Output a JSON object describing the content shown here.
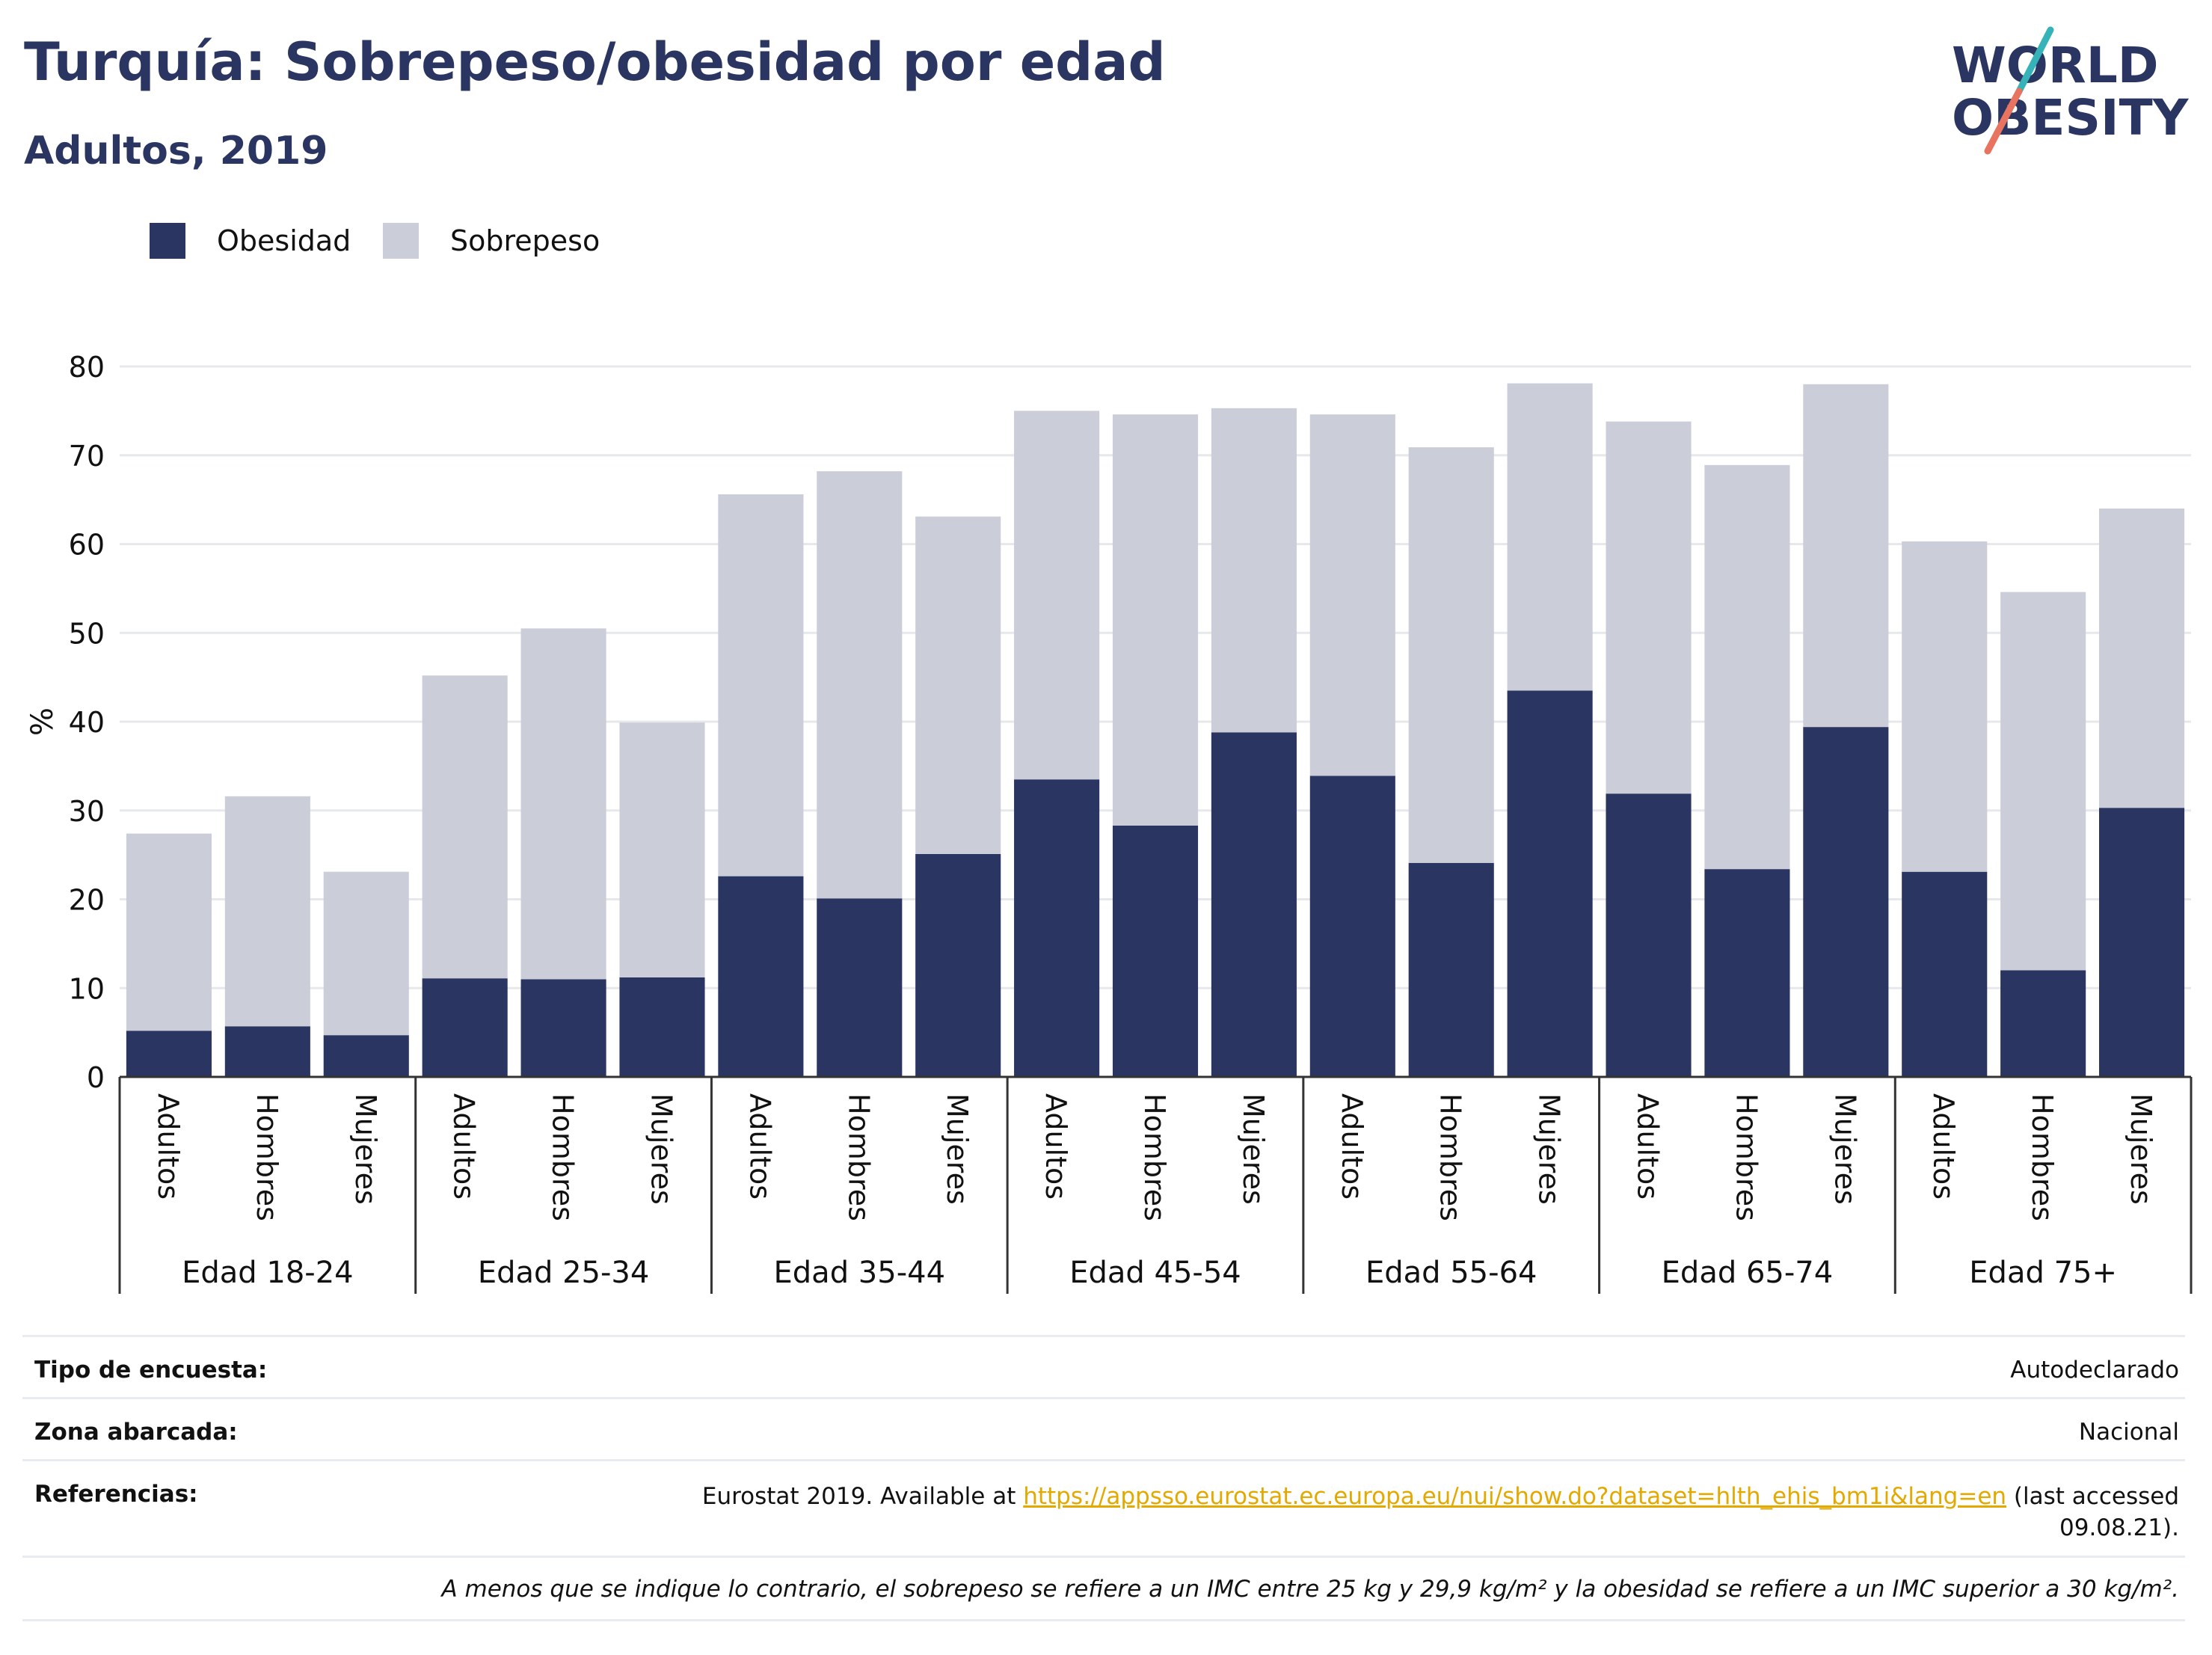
{
  "title": "Turquía: Sobrepeso/obesidad por edad",
  "subtitle": "Adultos, 2019",
  "logo": {
    "line1": "WORLD",
    "line2": "OBESITY"
  },
  "colors": {
    "obesity": "#2a3561",
    "overweight": "#cbcdd8",
    "logo_teal": "#36b3b9",
    "logo_coral": "#e8735f",
    "link": "#e4a900"
  },
  "legend": [
    {
      "label": "Obesidad",
      "color": "#2a3561"
    },
    {
      "label": "Sobrepeso",
      "color": "#cbcdd8"
    }
  ],
  "chart_data": {
    "type": "bar",
    "stacked": true,
    "ylabel": "%",
    "xlabel": "",
    "ylim": [
      0,
      80
    ],
    "yticks": [
      0,
      10,
      20,
      30,
      40,
      50,
      60,
      70,
      80
    ],
    "grid": true,
    "legend_position": "top-left",
    "groups": [
      "Edad 18-24",
      "Edad 25-34",
      "Edad 35-44",
      "Edad 45-54",
      "Edad 55-64",
      "Edad 65-74",
      "Edad 75+"
    ],
    "subcategories": [
      "Adultos",
      "Hombres",
      "Mujeres"
    ],
    "series": [
      {
        "name": "Obesidad",
        "values": [
          5.2,
          5.7,
          4.7,
          11.1,
          11.0,
          11.2,
          22.6,
          20.1,
          25.1,
          33.5,
          28.3,
          38.8,
          33.9,
          24.1,
          43.5,
          31.9,
          23.4,
          39.4,
          23.1,
          12.0,
          30.3
        ]
      },
      {
        "name": "Sobrepeso",
        "values": [
          22.2,
          25.9,
          18.4,
          34.1,
          39.5,
          28.7,
          43.0,
          48.1,
          38.0,
          41.5,
          46.3,
          36.5,
          40.7,
          46.8,
          34.6,
          41.9,
          45.5,
          38.6,
          37.2,
          42.6,
          33.7
        ]
      }
    ]
  },
  "info": {
    "survey_label": "Tipo de encuesta:",
    "survey_value": "Autodeclarado",
    "area_label": "Zona abarcada:",
    "area_value": "Nacional",
    "ref_label": "Referencias:",
    "ref_prefix": "Eurostat 2019. Available at",
    "ref_link": "https://appsso.eurostat.ec.europa.eu/nui/show.do?dataset=hlth_ehis_bm1i&lang=en",
    "ref_suffix": "(last accessed",
    "ref_date": "09.08.21).",
    "note": "A menos que se indique lo contrario, el sobrepeso se refiere a un IMC entre 25 kg y 29,9 kg/m² y la obesidad se refiere a un IMC superior a 30 kg/m²."
  }
}
